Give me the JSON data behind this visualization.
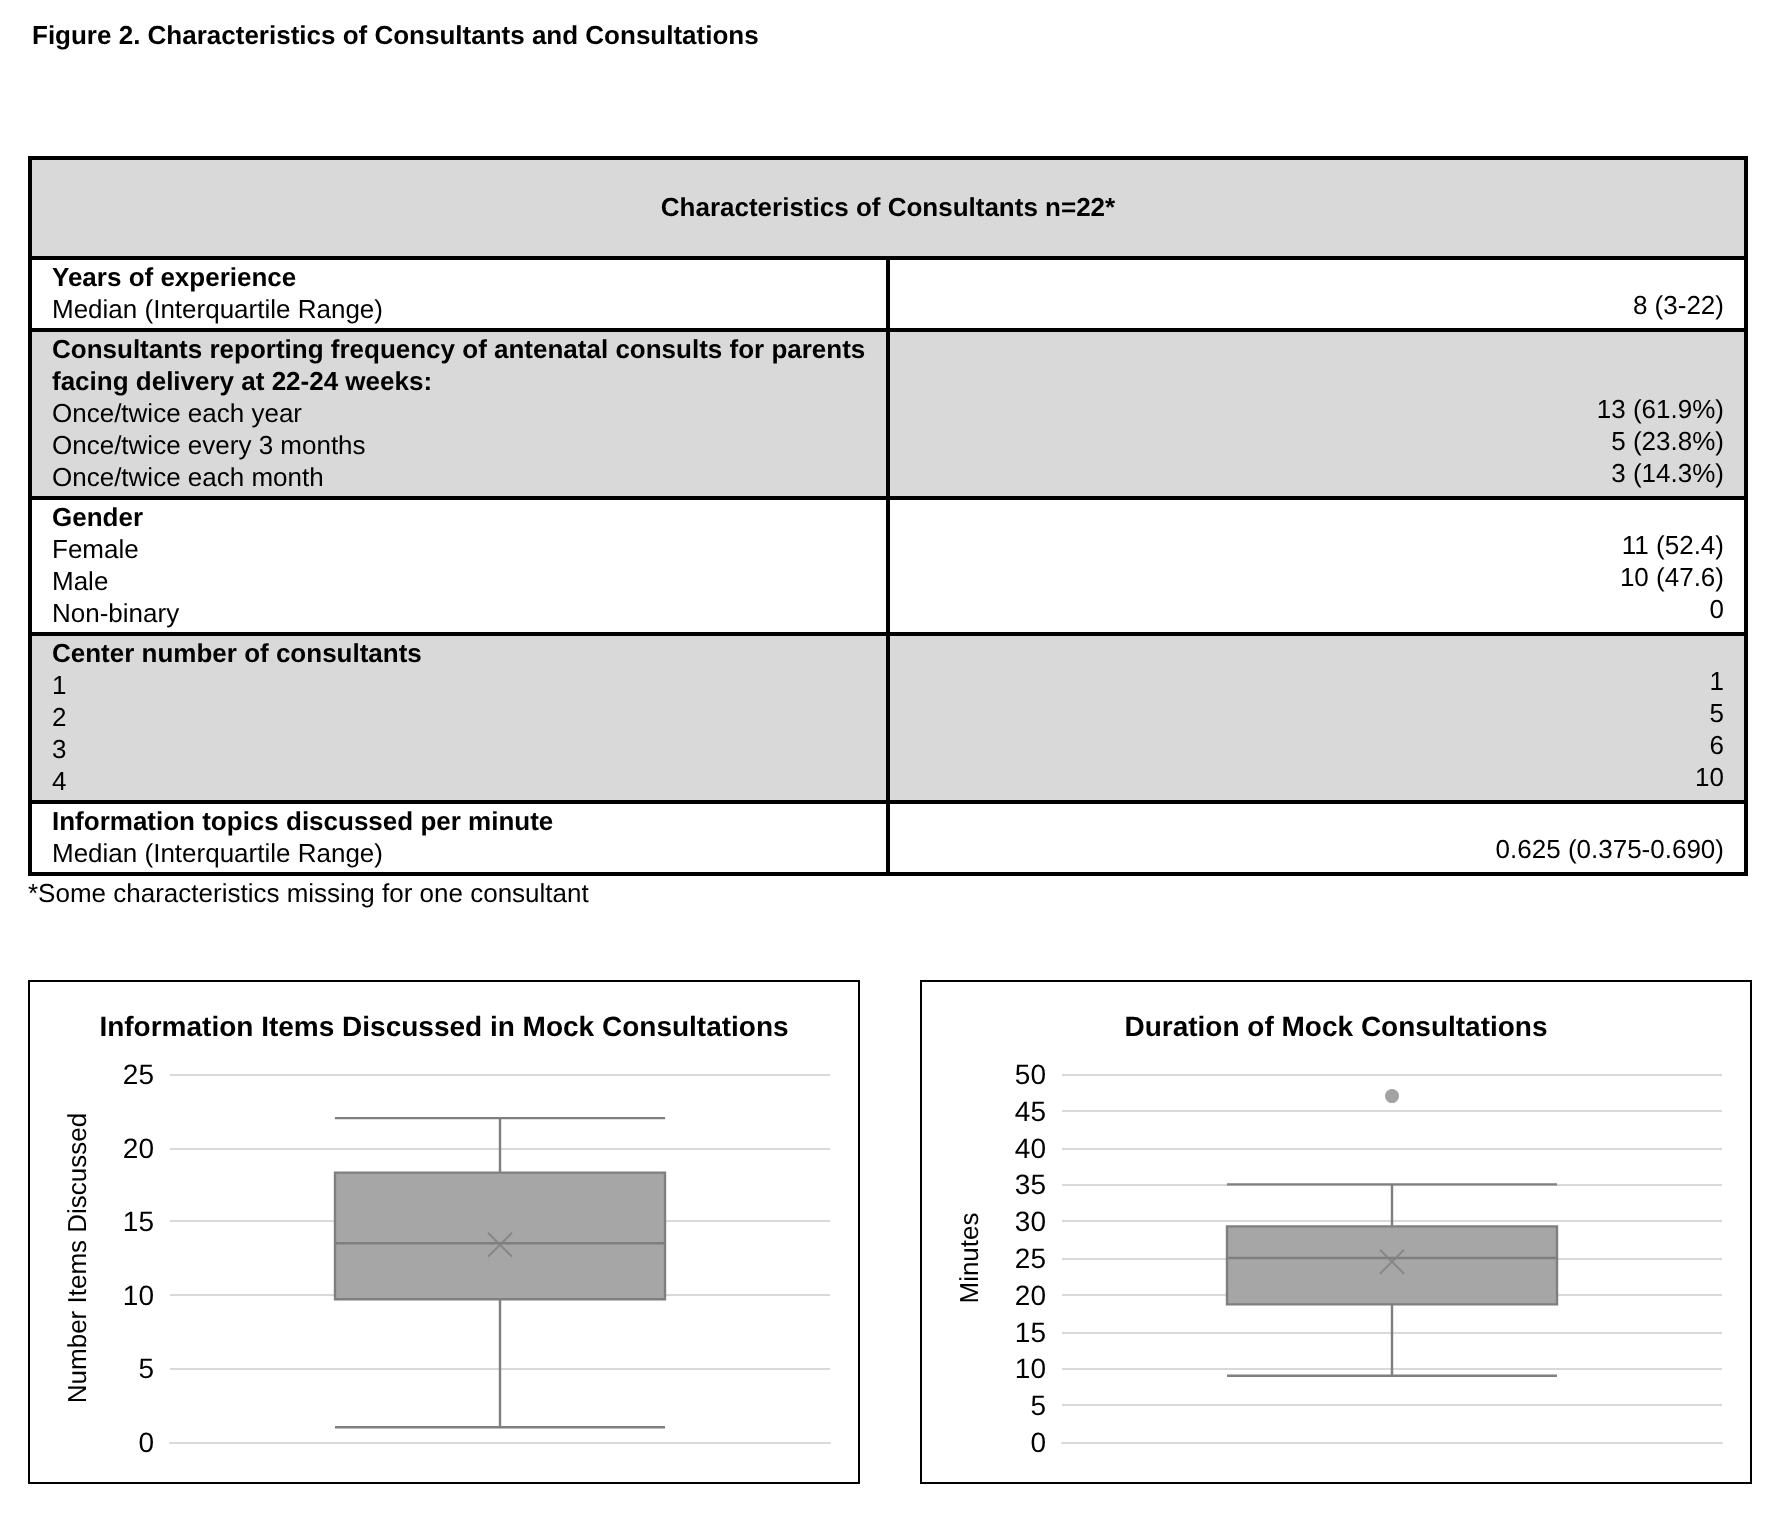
{
  "chart_data": [
    {
      "type": "other",
      "title": "Figure 2. Characteristics of Consultants and Consultations",
      "subtitle": "Characteristics of Consultants n=22*",
      "annotations": [
        "Years of experience\nMedian (Interquartile Range)",
        "8 (3-22)",
        "Consultants reporting frequency of antenatal consults for parents facing delivery at 22-24 weeks:\nOnce/twice each year\nOnce/twice every 3 months\nOnce/twice each month",
        "13 (61.9%)\n5 (23.8%)\n3 (14.3%)",
        "Gender\nFemale\nMale\nNon-binary",
        "11 (52.4)\n10 (47.6)\n0",
        "Center number of consultants\n1\n2\n3\n4",
        "1\n5\n6\n10",
        "Information topics discussed per minute\nMedian (Interquartile Range)",
        "0.625 (0.375-0.690)",
        "*Some characteristics missing for one consultant"
      ]
    },
    {
      "type": "box",
      "title": "Information Items Discussed in Mock Consultations",
      "ylabel": "Number Items Discussed",
      "categories": [
        null
      ],
      "series": [
        {
          "color": "#a6a6a6",
          "boxes": [
            {
              "low": 1,
              "q1": 9.7,
              "median": 13.5,
              "q3": 18.3,
              "high": 22,
              "mean": 13.4
            }
          ]
        }
      ],
      "ylim": [
        0,
        25
      ],
      "yticks": [
        0,
        5,
        10,
        15,
        20,
        25
      ],
      "grid": "y"
    },
    {
      "type": "box",
      "title": "Duration of Mock Consultations",
      "ylabel": "Minutes",
      "categories": [
        null
      ],
      "series": [
        {
          "color": "#a6a6a6",
          "boxes": [
            {
              "low": 9,
              "q1": 18.7,
              "median": 25,
              "q3": 29.3,
              "high": 35,
              "mean": 24.5,
              "outliers": [
                47
              ]
            }
          ]
        }
      ],
      "ylim": [
        0,
        50
      ],
      "yticks": [
        0,
        5,
        10,
        15,
        20,
        25,
        30,
        35,
        40,
        45,
        50
      ],
      "grid": "y"
    }
  ]
}
